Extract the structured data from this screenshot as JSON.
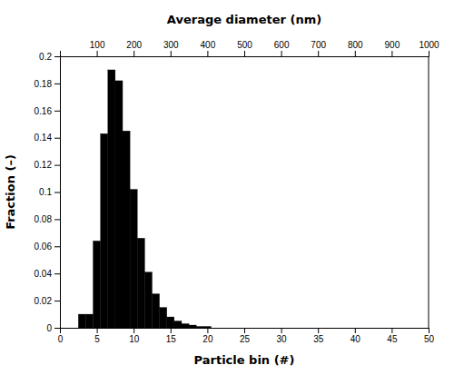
{
  "chart_data": {
    "type": "bar",
    "xlabel": "Particle bin (#)",
    "ylabel": "Fraction (–)",
    "x2label": "Average diameter (nm)",
    "x": [
      1,
      2,
      3,
      4,
      5,
      6,
      7,
      8,
      9,
      10,
      11,
      12,
      13,
      14,
      15,
      16,
      17,
      18,
      19,
      20,
      21,
      22,
      23,
      24,
      25
    ],
    "values": [
      0.0,
      0.0,
      0.01,
      0.01,
      0.064,
      0.143,
      0.19,
      0.182,
      0.145,
      0.102,
      0.066,
      0.041,
      0.025,
      0.015,
      0.008,
      0.005,
      0.003,
      0.002,
      0.001,
      0.001,
      0.0,
      0.0,
      0.0,
      0.0,
      0.0
    ],
    "color": "#000000",
    "xlim": [
      0,
      50
    ],
    "xticks": [
      0,
      5,
      10,
      15,
      20,
      25,
      30,
      35,
      40,
      45,
      50
    ],
    "ylim": [
      0,
      0.2
    ],
    "yticks": [
      0,
      0.02,
      0.04,
      0.06,
      0.08,
      0.1,
      0.12,
      0.14,
      0.16,
      0.18,
      0.2
    ],
    "x2lim": [
      0,
      1000
    ],
    "x2ticks": [
      100,
      200,
      300,
      400,
      500,
      600,
      700,
      800,
      900,
      1000
    ],
    "grid": false
  }
}
